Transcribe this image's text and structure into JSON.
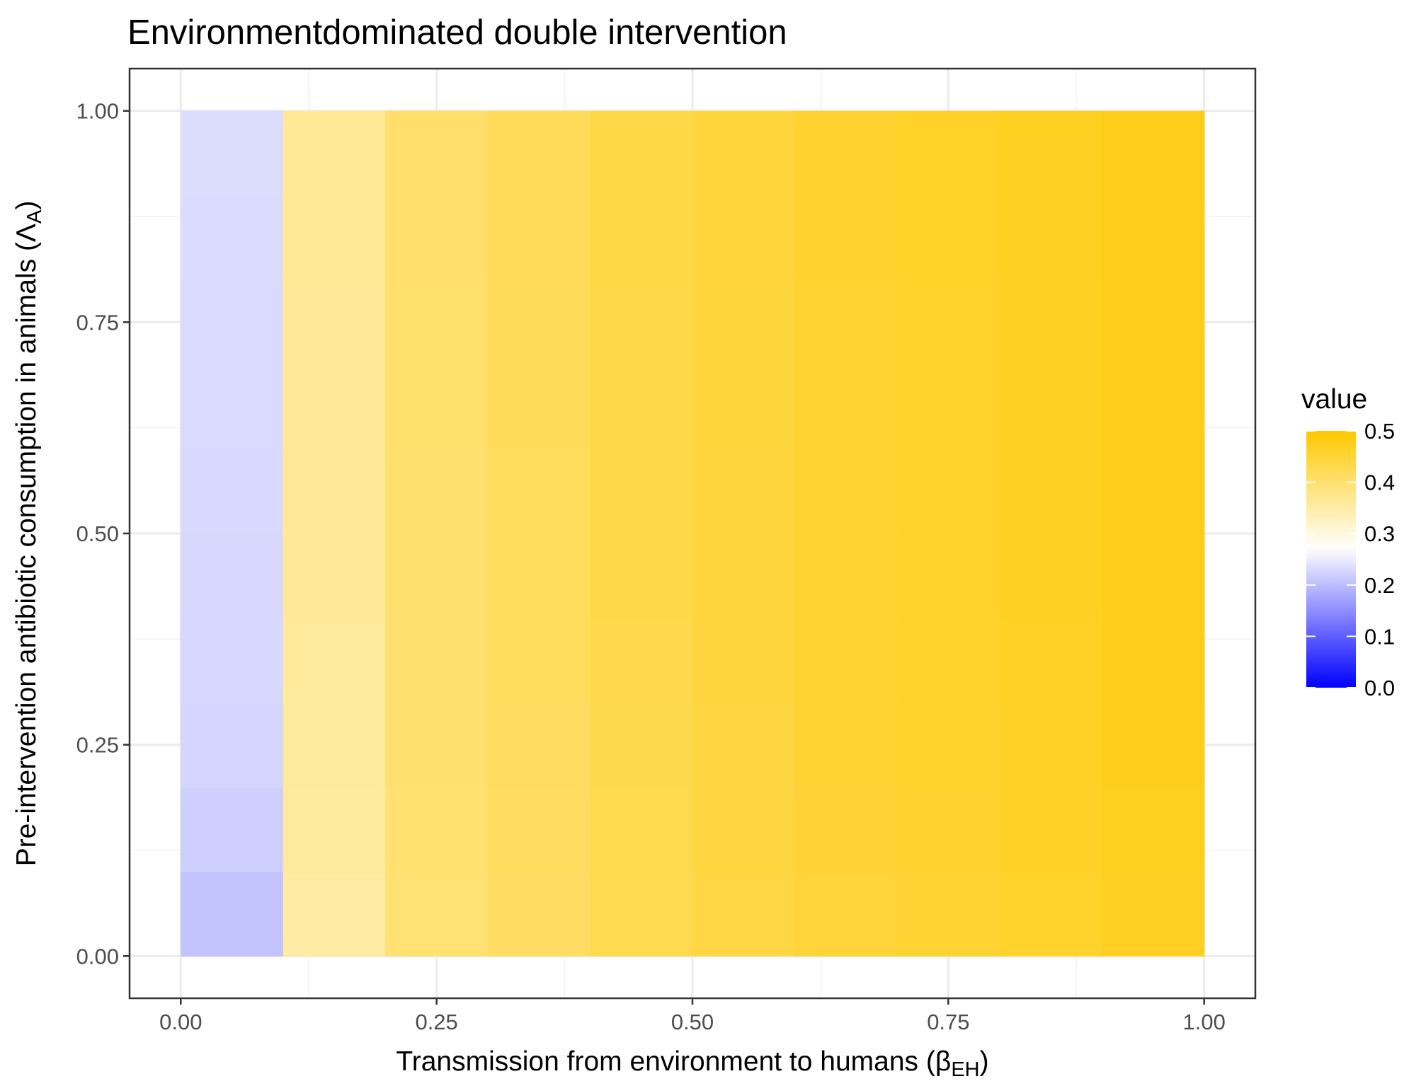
{
  "chart_data": {
    "type": "heatmap",
    "title": "Environmentdominated double intervention",
    "xlabel": {
      "main": "Transmission from environment to humans (",
      "symbol": "β",
      "sub": "EH",
      "close": ")"
    },
    "ylabel": {
      "main": "Pre-intervention antibiotic consumption in animals (",
      "symbol": "Λ",
      "sub": "A",
      "close": ")"
    },
    "xlim": [
      -0.05,
      1.05
    ],
    "ylim": [
      -0.05,
      1.05
    ],
    "x_ticks": [
      0,
      0.25,
      0.5,
      0.75,
      1
    ],
    "x_tick_labels": [
      "0.00",
      "0.25",
      "0.50",
      "0.75",
      "1.00"
    ],
    "y_ticks": [
      0,
      0.25,
      0.5,
      0.75,
      1
    ],
    "y_tick_labels": [
      "0.00",
      "0.25",
      "0.50",
      "0.75",
      "1.00"
    ],
    "grid": true,
    "theme": "bw",
    "x_edges": [
      0,
      0.1,
      0.2,
      0.3,
      0.4,
      0.5,
      0.6,
      0.7,
      0.8,
      0.9,
      1.0
    ],
    "y_edges": [
      0,
      0.1,
      0.2,
      0.3,
      0.4,
      0.5,
      0.6,
      0.7,
      0.8,
      0.9,
      1.0
    ],
    "values": [
      [
        0.207,
        0.352,
        0.395,
        0.412,
        0.428,
        0.44,
        0.448,
        0.454,
        0.46,
        0.468
      ],
      [
        0.218,
        0.358,
        0.398,
        0.414,
        0.43,
        0.442,
        0.452,
        0.458,
        0.464,
        0.472
      ],
      [
        0.226,
        0.36,
        0.4,
        0.416,
        0.431,
        0.443,
        0.454,
        0.46,
        0.466,
        0.474
      ],
      [
        0.228,
        0.361,
        0.401,
        0.417,
        0.432,
        0.444,
        0.455,
        0.461,
        0.467,
        0.475
      ],
      [
        0.229,
        0.362,
        0.402,
        0.418,
        0.433,
        0.445,
        0.456,
        0.462,
        0.468,
        0.476
      ],
      [
        0.23,
        0.362,
        0.402,
        0.418,
        0.433,
        0.445,
        0.456,
        0.462,
        0.468,
        0.476
      ],
      [
        0.231,
        0.363,
        0.403,
        0.419,
        0.434,
        0.446,
        0.456,
        0.462,
        0.468,
        0.476
      ],
      [
        0.231,
        0.363,
        0.403,
        0.419,
        0.434,
        0.446,
        0.456,
        0.462,
        0.468,
        0.476
      ],
      [
        0.232,
        0.364,
        0.404,
        0.42,
        0.435,
        0.447,
        0.457,
        0.463,
        0.469,
        0.477
      ],
      [
        0.233,
        0.364,
        0.404,
        0.42,
        0.435,
        0.447,
        0.457,
        0.463,
        0.469,
        0.477
      ]
    ],
    "legend": {
      "title": "value",
      "placement": "right",
      "range": [
        0,
        0.5
      ],
      "breaks": [
        0.0,
        0.1,
        0.2,
        0.3,
        0.4,
        0.5
      ],
      "break_labels": [
        "0.0",
        "0.1",
        "0.2",
        "0.3",
        "0.4",
        "0.5"
      ]
    },
    "color_scale": {
      "low": "#0000ff",
      "mid": "#ffffff",
      "high": "#ffc800",
      "midpoint": 0.27
    }
  }
}
